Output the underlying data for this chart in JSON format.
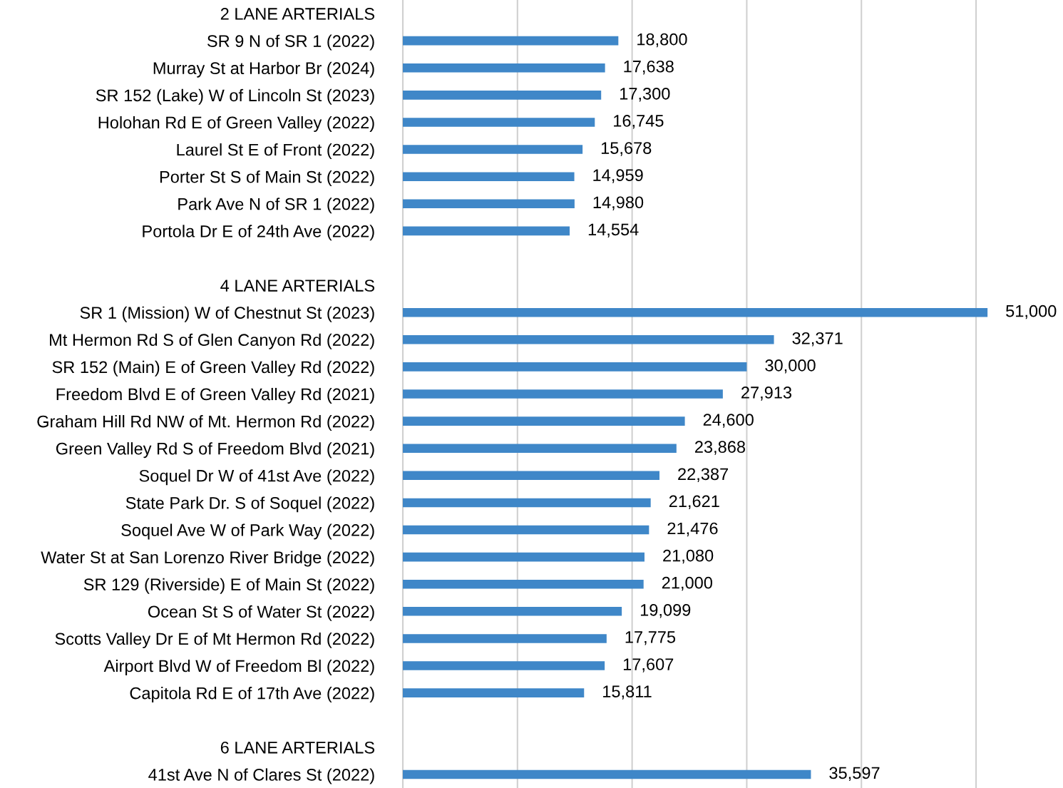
{
  "chart_data": {
    "type": "bar",
    "orientation": "horizontal",
    "categories": [
      "2 LANE ARTERIALS",
      "SR 9 N of SR 1 (2022)",
      "Murray St at Harbor Br (2024)",
      "SR 152 (Lake) W of Lincoln St (2023)",
      "Holohan Rd E of Green Valley (2022)",
      "Laurel St E of Front (2022)",
      "Porter St S of Main St (2022)",
      "Park Ave N of SR 1 (2022)",
      "Portola Dr E of 24th Ave (2022)",
      null,
      "4 LANE ARTERIALS",
      "SR 1 (Mission) W of Chestnut St (2023)",
      "Mt Hermon Rd S of Glen Canyon Rd (2022)",
      "SR 152 (Main) E of Green Valley Rd (2022)",
      "Freedom Blvd E of Green Valley Rd (2021)",
      "Graham Hill Rd NW of Mt. Hermon Rd (2022)",
      "Green Valley Rd S of Freedom Blvd (2021)",
      "Soquel Dr W of 41st Ave (2022)",
      "State Park Dr. S of Soquel (2022)",
      "Soquel Ave W of Park Way (2022)",
      "Water St at San Lorenzo River Bridge (2022)",
      "SR 129 (Riverside) E of Main St (2022)",
      "Ocean St S of Water St (2022)",
      "Scotts Valley Dr E of Mt Hermon Rd (2022)",
      "Airport Blvd W of Freedom Bl (2022)",
      "Capitola Rd E of 17th Ave (2022)",
      null,
      "6 LANE ARTERIALS",
      "41st Ave N of Clares St (2022)"
    ],
    "values": [
      null,
      18800,
      17638,
      17300,
      16745,
      15678,
      14959,
      14980,
      14554,
      null,
      null,
      51000,
      32371,
      30000,
      27913,
      24600,
      23868,
      22387,
      21621,
      21476,
      21080,
      21000,
      19099,
      17775,
      17607,
      15811,
      null,
      null,
      35597
    ],
    "value_labels": [
      null,
      "18,800",
      "17,638",
      "17,300",
      "16,745",
      "15,678",
      "14,959",
      "14,980",
      "14,554",
      null,
      null,
      "51,000",
      "32,371",
      "30,000",
      "27,913",
      "24,600",
      "23,868",
      "22,387",
      "21,621",
      "21,476",
      "21,080",
      "21,000",
      "19,099",
      "17,775",
      "17,607",
      "15,811",
      null,
      null,
      "35,597"
    ],
    "color": "#3f87c8",
    "xticks": [
      {
        "value": 0,
        "label": null
      },
      {
        "value": 10000,
        "label": null
      },
      {
        "value": 20000,
        "label": null
      },
      {
        "value": 30000,
        "label": null
      },
      {
        "value": 40000,
        "label": null
      },
      {
        "value": 50000,
        "label": null
      }
    ],
    "tick_labels": "y",
    "grid": "x",
    "legend": false
  }
}
